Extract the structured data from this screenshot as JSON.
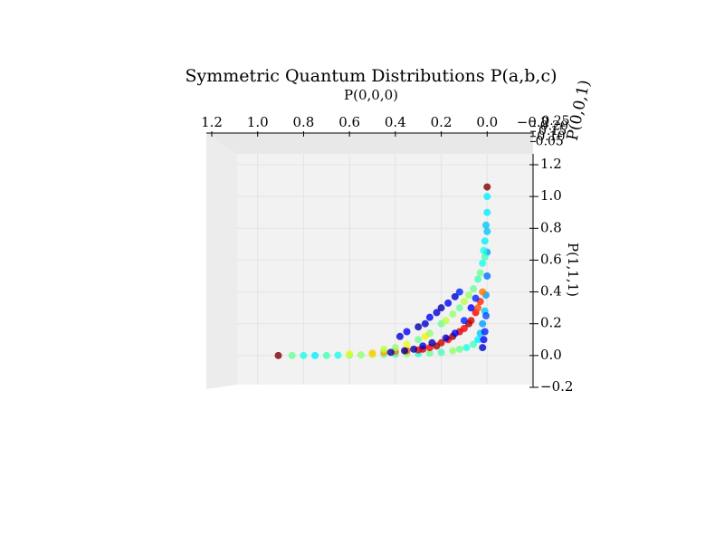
{
  "chart_data": {
    "type": "scatter3d",
    "title": "Symmetric Quantum Distributions P(a,b,c)",
    "x_label": "P(0,0,0)",
    "y_label": "P(1,1,1)",
    "z_label": "P(0,0,1)",
    "xlim": [
      1.2,
      -0.2
    ],
    "xticks": [
      1.2,
      {
        "value": 1,
        "label": "1.0"
      },
      0.8,
      0.6,
      0.4,
      0.2,
      {
        "value": 0,
        "label": "0.0"
      },
      {
        "value": -0.2,
        "label": "−0.2"
      }
    ],
    "ylim": [
      -0.2,
      1.2
    ],
    "yticks": [
      {
        "value": -0.2,
        "label": "−0.2"
      },
      {
        "value": 0,
        "label": "0.0"
      },
      0.2,
      0.4,
      0.6,
      0.8,
      {
        "value": 1,
        "label": "1.0"
      },
      1.2
    ],
    "zlim": [
      0,
      0.25
    ],
    "zticks": [
      0.05,
      {
        "value": 0.1,
        "label": "0.10"
      },
      0.15,
      {
        "value": 0.2,
        "label": "0.20"
      },
      0.25
    ],
    "colormap": "jet",
    "grid": true,
    "x": [
      0.91,
      0.85,
      0.8,
      0.75,
      0.7,
      0.65,
      0.6,
      0.55,
      0.5,
      0.45,
      0.4,
      0.35,
      0.3,
      0.25,
      0.2,
      0.15,
      0.12,
      0.09,
      0.06,
      0.04,
      0.03,
      0.02,
      0.01,
      0.005,
      0,
      0,
      0,
      0,
      0,
      0,
      0.6,
      0.5,
      0.45,
      0.4,
      0.35,
      0.3,
      0.28,
      0.25,
      0.22,
      0.2,
      0.17,
      0.15,
      0.12,
      0.1,
      0.08,
      0.07,
      0.05,
      0.04,
      0.03,
      0.02,
      0.45,
      0.4,
      0.35,
      0.3,
      0.27,
      0.25,
      0.2,
      0.18,
      0.15,
      0.12,
      0.1,
      0.08,
      0.06,
      0.04,
      0.03,
      0.02,
      0.01,
      0.015,
      0.01,
      0.005,
      0.38,
      0.35,
      0.3,
      0.27,
      0.25,
      0.22,
      0.2,
      0.17,
      0.14,
      0.12,
      0.42,
      0.36,
      0.32,
      0.28,
      0.24,
      0.18,
      0.14,
      0.1,
      0.07,
      0.05,
      0.02,
      0.015,
      0.01,
      0.005
    ],
    "y": [
      0,
      0,
      0,
      0,
      0,
      0.002,
      0.003,
      0.004,
      0.005,
      0.006,
      0.008,
      0.01,
      0.012,
      0.015,
      0.02,
      0.03,
      0.04,
      0.05,
      0.07,
      0.1,
      0.14,
      0.2,
      0.28,
      0.38,
      0.5,
      0.65,
      0.78,
      0.9,
      1.0,
      1.06,
      0.01,
      0.015,
      0.02,
      0.025,
      0.03,
      0.035,
      0.04,
      0.05,
      0.06,
      0.08,
      0.1,
      0.12,
      0.15,
      0.17,
      0.2,
      0.22,
      0.27,
      0.3,
      0.34,
      0.4,
      0.04,
      0.05,
      0.07,
      0.1,
      0.12,
      0.14,
      0.2,
      0.22,
      0.26,
      0.3,
      0.34,
      0.38,
      0.42,
      0.48,
      0.52,
      0.58,
      0.62,
      0.66,
      0.72,
      0.82,
      0.12,
      0.15,
      0.18,
      0.2,
      0.24,
      0.27,
      0.3,
      0.33,
      0.37,
      0.4,
      0.02,
      0.03,
      0.04,
      0.06,
      0.08,
      0.11,
      0.14,
      0.22,
      0.3,
      0.36,
      0.05,
      0.1,
      0.15,
      0.25
    ],
    "z": [
      0.25,
      0.12,
      0.1,
      0.09,
      0.11,
      0.1,
      0.12,
      0.13,
      0.14,
      0.12,
      0.11,
      0.13,
      0.1,
      0.12,
      0.11,
      0.13,
      0.12,
      0.1,
      0.11,
      0.09,
      0.08,
      0.07,
      0.08,
      0.07,
      0.06,
      0.07,
      0.08,
      0.09,
      0.09,
      0.25,
      0.15,
      0.17,
      0.18,
      0.19,
      0.2,
      0.22,
      0.23,
      0.22,
      0.24,
      0.23,
      0.22,
      0.24,
      0.23,
      0.22,
      0.24,
      0.23,
      0.22,
      0.2,
      0.21,
      0.19,
      0.14,
      0.13,
      0.15,
      0.12,
      0.16,
      0.13,
      0.12,
      0.14,
      0.13,
      0.12,
      0.14,
      0.13,
      0.12,
      0.11,
      0.12,
      0.1,
      0.11,
      0.1,
      0.09,
      0.08,
      0.02,
      0.03,
      0.01,
      0.02,
      0.03,
      0.02,
      0.01,
      0.03,
      0.02,
      0.04,
      0.01,
      0.005,
      0.01,
      0.02,
      0.01,
      0.02,
      0.03,
      0.04,
      0.03,
      0.04,
      0.02,
      0.03,
      0.04,
      0.05
    ]
  }
}
